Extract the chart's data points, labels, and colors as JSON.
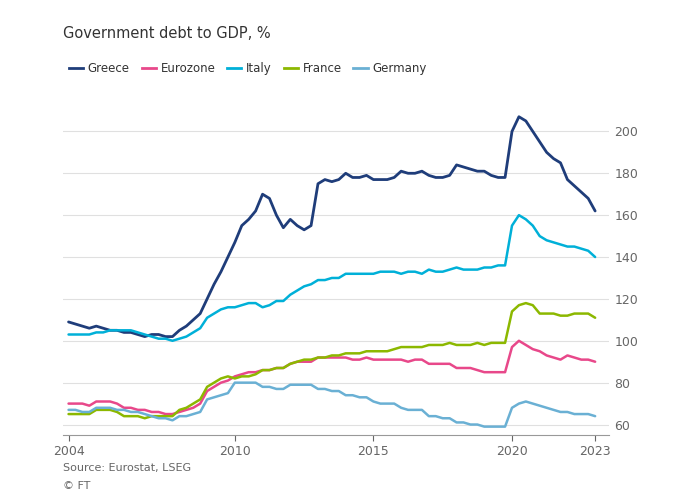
{
  "title": "Government debt to GDP, %",
  "source": "Source: Eurostat, LSEG",
  "footer": "© FT",
  "series": {
    "Greece": {
      "color": "#1f3d7a",
      "linewidth": 2.0,
      "x": [
        2004.0,
        2004.25,
        2004.5,
        2004.75,
        2005.0,
        2005.25,
        2005.5,
        2005.75,
        2006.0,
        2006.25,
        2006.5,
        2006.75,
        2007.0,
        2007.25,
        2007.5,
        2007.75,
        2008.0,
        2008.25,
        2008.5,
        2008.75,
        2009.0,
        2009.25,
        2009.5,
        2009.75,
        2010.0,
        2010.25,
        2010.5,
        2010.75,
        2011.0,
        2011.25,
        2011.5,
        2011.75,
        2012.0,
        2012.25,
        2012.5,
        2012.75,
        2013.0,
        2013.25,
        2013.5,
        2013.75,
        2014.0,
        2014.25,
        2014.5,
        2014.75,
        2015.0,
        2015.25,
        2015.5,
        2015.75,
        2016.0,
        2016.25,
        2016.5,
        2016.75,
        2017.0,
        2017.25,
        2017.5,
        2017.75,
        2018.0,
        2018.25,
        2018.5,
        2018.75,
        2019.0,
        2019.25,
        2019.5,
        2019.75,
        2020.0,
        2020.25,
        2020.5,
        2020.75,
        2021.0,
        2021.25,
        2021.5,
        2021.75,
        2022.0,
        2022.25,
        2022.5,
        2022.75,
        2023.0
      ],
      "y": [
        109,
        108,
        107,
        106,
        107,
        106,
        105,
        105,
        104,
        104,
        103,
        102,
        103,
        103,
        102,
        102,
        105,
        107,
        110,
        113,
        120,
        127,
        133,
        140,
        147,
        155,
        158,
        162,
        170,
        168,
        160,
        154,
        158,
        155,
        153,
        155,
        175,
        177,
        176,
        177,
        180,
        178,
        178,
        179,
        177,
        177,
        177,
        178,
        181,
        180,
        180,
        181,
        179,
        178,
        178,
        179,
        184,
        183,
        182,
        181,
        181,
        179,
        178,
        178,
        200,
        207,
        205,
        200,
        195,
        190,
        187,
        185,
        177,
        174,
        171,
        168,
        162
      ]
    },
    "Italy": {
      "color": "#00b0d8",
      "linewidth": 1.8,
      "x": [
        2004.0,
        2004.25,
        2004.5,
        2004.75,
        2005.0,
        2005.25,
        2005.5,
        2005.75,
        2006.0,
        2006.25,
        2006.5,
        2006.75,
        2007.0,
        2007.25,
        2007.5,
        2007.75,
        2008.0,
        2008.25,
        2008.5,
        2008.75,
        2009.0,
        2009.25,
        2009.5,
        2009.75,
        2010.0,
        2010.25,
        2010.5,
        2010.75,
        2011.0,
        2011.25,
        2011.5,
        2011.75,
        2012.0,
        2012.25,
        2012.5,
        2012.75,
        2013.0,
        2013.25,
        2013.5,
        2013.75,
        2014.0,
        2014.25,
        2014.5,
        2014.75,
        2015.0,
        2015.25,
        2015.5,
        2015.75,
        2016.0,
        2016.25,
        2016.5,
        2016.75,
        2017.0,
        2017.25,
        2017.5,
        2017.75,
        2018.0,
        2018.25,
        2018.5,
        2018.75,
        2019.0,
        2019.25,
        2019.5,
        2019.75,
        2020.0,
        2020.25,
        2020.5,
        2020.75,
        2021.0,
        2021.25,
        2021.5,
        2021.75,
        2022.0,
        2022.25,
        2022.5,
        2022.75,
        2023.0
      ],
      "y": [
        103,
        103,
        103,
        103,
        104,
        104,
        105,
        105,
        105,
        105,
        104,
        103,
        102,
        101,
        101,
        100,
        101,
        102,
        104,
        106,
        111,
        113,
        115,
        116,
        116,
        117,
        118,
        118,
        116,
        117,
        119,
        119,
        122,
        124,
        126,
        127,
        129,
        129,
        130,
        130,
        132,
        132,
        132,
        132,
        132,
        133,
        133,
        133,
        132,
        133,
        133,
        132,
        134,
        133,
        133,
        134,
        135,
        134,
        134,
        134,
        135,
        135,
        136,
        136,
        155,
        160,
        158,
        155,
        150,
        148,
        147,
        146,
        145,
        145,
        144,
        143,
        140
      ]
    },
    "France": {
      "color": "#8cb800",
      "linewidth": 1.8,
      "x": [
        2004.0,
        2004.25,
        2004.5,
        2004.75,
        2005.0,
        2005.25,
        2005.5,
        2005.75,
        2006.0,
        2006.25,
        2006.5,
        2006.75,
        2007.0,
        2007.25,
        2007.5,
        2007.75,
        2008.0,
        2008.25,
        2008.5,
        2008.75,
        2009.0,
        2009.25,
        2009.5,
        2009.75,
        2010.0,
        2010.25,
        2010.5,
        2010.75,
        2011.0,
        2011.25,
        2011.5,
        2011.75,
        2012.0,
        2012.25,
        2012.5,
        2012.75,
        2013.0,
        2013.25,
        2013.5,
        2013.75,
        2014.0,
        2014.25,
        2014.5,
        2014.75,
        2015.0,
        2015.25,
        2015.5,
        2015.75,
        2016.0,
        2016.25,
        2016.5,
        2016.75,
        2017.0,
        2017.25,
        2017.5,
        2017.75,
        2018.0,
        2018.25,
        2018.5,
        2018.75,
        2019.0,
        2019.25,
        2019.5,
        2019.75,
        2020.0,
        2020.25,
        2020.5,
        2020.75,
        2021.0,
        2021.25,
        2021.5,
        2021.75,
        2022.0,
        2022.25,
        2022.5,
        2022.75,
        2023.0
      ],
      "y": [
        65,
        65,
        65,
        65,
        67,
        67,
        67,
        66,
        64,
        64,
        64,
        63,
        64,
        64,
        64,
        64,
        67,
        68,
        70,
        72,
        78,
        80,
        82,
        83,
        82,
        83,
        83,
        84,
        86,
        86,
        87,
        87,
        89,
        90,
        91,
        91,
        92,
        92,
        93,
        93,
        94,
        94,
        94,
        95,
        95,
        95,
        95,
        96,
        97,
        97,
        97,
        97,
        98,
        98,
        98,
        99,
        98,
        98,
        98,
        99,
        98,
        99,
        99,
        99,
        114,
        117,
        118,
        117,
        113,
        113,
        113,
        112,
        112,
        113,
        113,
        113,
        111
      ]
    },
    "Eurozone": {
      "color": "#e8488a",
      "linewidth": 1.8,
      "x": [
        2004.0,
        2004.25,
        2004.5,
        2004.75,
        2005.0,
        2005.25,
        2005.5,
        2005.75,
        2006.0,
        2006.25,
        2006.5,
        2006.75,
        2007.0,
        2007.25,
        2007.5,
        2007.75,
        2008.0,
        2008.25,
        2008.5,
        2008.75,
        2009.0,
        2009.25,
        2009.5,
        2009.75,
        2010.0,
        2010.25,
        2010.5,
        2010.75,
        2011.0,
        2011.25,
        2011.5,
        2011.75,
        2012.0,
        2012.25,
        2012.5,
        2012.75,
        2013.0,
        2013.25,
        2013.5,
        2013.75,
        2014.0,
        2014.25,
        2014.5,
        2014.75,
        2015.0,
        2015.25,
        2015.5,
        2015.75,
        2016.0,
        2016.25,
        2016.5,
        2016.75,
        2017.0,
        2017.25,
        2017.5,
        2017.75,
        2018.0,
        2018.25,
        2018.5,
        2018.75,
        2019.0,
        2019.25,
        2019.5,
        2019.75,
        2020.0,
        2020.25,
        2020.5,
        2020.75,
        2021.0,
        2021.25,
        2021.5,
        2021.75,
        2022.0,
        2022.25,
        2022.5,
        2022.75,
        2023.0
      ],
      "y": [
        70,
        70,
        70,
        69,
        71,
        71,
        71,
        70,
        68,
        68,
        67,
        67,
        66,
        66,
        65,
        65,
        66,
        67,
        68,
        70,
        76,
        78,
        80,
        81,
        83,
        84,
        85,
        85,
        86,
        86,
        87,
        87,
        89,
        90,
        90,
        90,
        92,
        92,
        92,
        92,
        92,
        91,
        91,
        92,
        91,
        91,
        91,
        91,
        91,
        90,
        91,
        91,
        89,
        89,
        89,
        89,
        87,
        87,
        87,
        86,
        85,
        85,
        85,
        85,
        97,
        100,
        98,
        96,
        95,
        93,
        92,
        91,
        93,
        92,
        91,
        91,
        90
      ]
    },
    "Germany": {
      "color": "#6ab0d4",
      "linewidth": 1.8,
      "x": [
        2004.0,
        2004.25,
        2004.5,
        2004.75,
        2005.0,
        2005.25,
        2005.5,
        2005.75,
        2006.0,
        2006.25,
        2006.5,
        2006.75,
        2007.0,
        2007.25,
        2007.5,
        2007.75,
        2008.0,
        2008.25,
        2008.5,
        2008.75,
        2009.0,
        2009.25,
        2009.5,
        2009.75,
        2010.0,
        2010.25,
        2010.5,
        2010.75,
        2011.0,
        2011.25,
        2011.5,
        2011.75,
        2012.0,
        2012.25,
        2012.5,
        2012.75,
        2013.0,
        2013.25,
        2013.5,
        2013.75,
        2014.0,
        2014.25,
        2014.5,
        2014.75,
        2015.0,
        2015.25,
        2015.5,
        2015.75,
        2016.0,
        2016.25,
        2016.5,
        2016.75,
        2017.0,
        2017.25,
        2017.5,
        2017.75,
        2018.0,
        2018.25,
        2018.5,
        2018.75,
        2019.0,
        2019.25,
        2019.5,
        2019.75,
        2020.0,
        2020.25,
        2020.5,
        2020.75,
        2021.0,
        2021.25,
        2021.5,
        2021.75,
        2022.0,
        2022.25,
        2022.5,
        2022.75,
        2023.0
      ],
      "y": [
        67,
        67,
        66,
        66,
        68,
        68,
        68,
        67,
        67,
        66,
        66,
        65,
        64,
        63,
        63,
        62,
        64,
        64,
        65,
        66,
        72,
        73,
        74,
        75,
        80,
        80,
        80,
        80,
        78,
        78,
        77,
        77,
        79,
        79,
        79,
        79,
        77,
        77,
        76,
        76,
        74,
        74,
        73,
        73,
        71,
        70,
        70,
        70,
        68,
        67,
        67,
        67,
        64,
        64,
        63,
        63,
        61,
        61,
        60,
        60,
        59,
        59,
        59,
        59,
        68,
        70,
        71,
        70,
        69,
        68,
        67,
        66,
        66,
        65,
        65,
        65,
        64
      ]
    }
  },
  "legend_order": [
    "Greece",
    "Eurozone",
    "Italy",
    "France",
    "Germany"
  ],
  "ylim": [
    55,
    215
  ],
  "yticks": [
    60,
    80,
    100,
    120,
    140,
    160,
    180,
    200
  ],
  "xticks": [
    2004,
    2010,
    2015,
    2020,
    2023
  ],
  "xlim": [
    2003.8,
    2023.5
  ],
  "bg_color": "#ffffff",
  "plot_bg_color": "#ffffff",
  "grid_color": "#e0e0e0",
  "tick_color": "#666666",
  "title_color": "#333333",
  "legend_text_color": "#333333",
  "source_color": "#666666",
  "title_fontsize": 10.5,
  "legend_fontsize": 8.5,
  "tick_fontsize": 9,
  "source_fontsize": 8
}
